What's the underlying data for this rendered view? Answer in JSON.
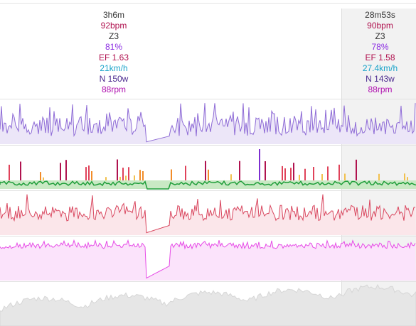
{
  "summary": {
    "duration": "3h6m",
    "heart_rate": "92bpm",
    "zone": "Z3",
    "percent": "81%",
    "efficiency": "EF 1.63",
    "speed": "21km/h",
    "normalized_power": "N 150w",
    "cadence": "88rpm"
  },
  "selection": {
    "duration": "28m53s",
    "heart_rate": "90bpm",
    "zone": "Z3",
    "percent": "78%",
    "efficiency": "EF 1.58",
    "speed": "27.4km/h",
    "normalized_power": "N 143w",
    "cadence": "88rpm"
  },
  "colors": {
    "duration": "#333333",
    "heart_rate": "#b0124f",
    "zone": "#333333",
    "percent": "#8a2be2",
    "efficiency": "#b0124f",
    "speed": "#19a3c9",
    "normalized_power": "#4b2a8f",
    "cadence": "#b012b0",
    "power_line": "#8e6bd6",
    "power_fill": "#ece6f8",
    "hr_line": "#d9475f",
    "hr_fill": "#fbe6ea",
    "cadence_line": "#e64ae6",
    "cadence_fill": "#fbe3fb",
    "elevation_fill": "#e6e6e6"
  }
}
